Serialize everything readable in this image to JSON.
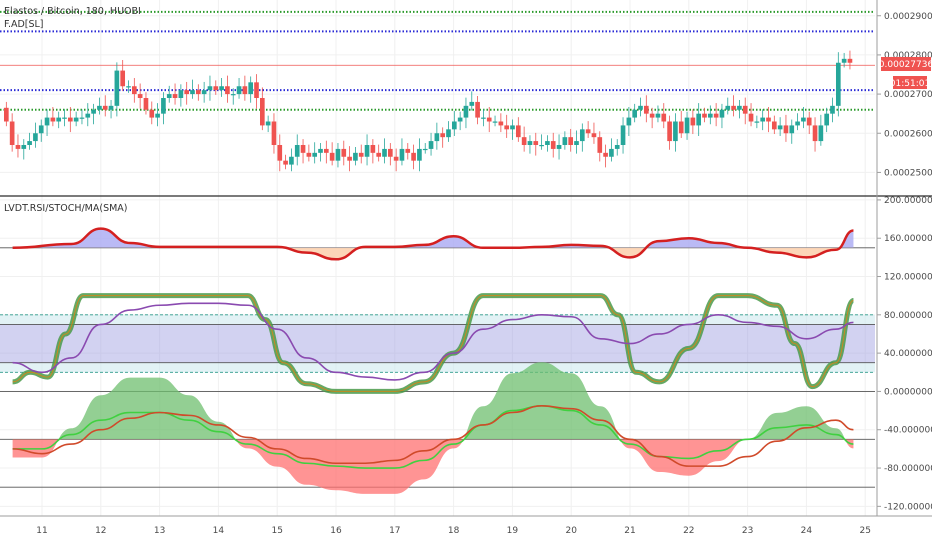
{
  "header": {
    "title": "Elastos / Bitcoin, 180, HUOBI",
    "indicator_top": "F.AD[SL]",
    "indicator_bottom": "LVDT.RSI/STOCH/MA(SMA)"
  },
  "price_tags": {
    "last_price": "0.00027736",
    "countdown": "01:51:01"
  },
  "colors": {
    "up": "#26a69a",
    "down": "#ef5350",
    "blue_level": "#2a2ad6",
    "green_level": "#2a9a2a",
    "price_line": "#ef5350",
    "axis_text": "#4a4a4a",
    "grid": "#f0f0f0"
  },
  "chart_data": [
    {
      "type": "candlestick",
      "title": "Elastos / Bitcoin, 180, HUOBI",
      "y_ticks": [
        "0.00029000",
        "0.00028000",
        "0.00027000",
        "0.00026000",
        "0.00025000"
      ],
      "ylim": [
        0.000245,
        0.000293
      ],
      "levels": {
        "green_dotted": [
          0.000291,
          0.000266
        ],
        "blue_dotted": [
          0.000286,
          0.000271
        ]
      },
      "last_price": 0.00027736,
      "candles": [
        [
          0.0002665,
          0.000263
        ],
        [
          0.000263,
          0.000257
        ],
        [
          0.000257,
          0.000256
        ],
        [
          0.000256,
          0.000257
        ],
        [
          0.000257,
          0.000258
        ],
        [
          0.000258,
          0.00026
        ],
        [
          0.00026,
          0.000262
        ],
        [
          0.000262,
          0.000264
        ],
        [
          0.000264,
          0.000263
        ],
        [
          0.000263,
          0.000264
        ],
        [
          0.000264,
          0.000264
        ],
        [
          0.000264,
          0.000263
        ],
        [
          0.000263,
          0.000264
        ],
        [
          0.000264,
          0.000264
        ],
        [
          0.000264,
          0.000265
        ],
        [
          0.000265,
          0.000266
        ],
        [
          0.000266,
          0.000267
        ],
        [
          0.000267,
          0.000266
        ],
        [
          0.000266,
          0.000267
        ],
        [
          0.000267,
          0.000276
        ],
        [
          0.000276,
          0.000272
        ],
        [
          0.000272,
          0.000272
        ],
        [
          0.000272,
          0.00027
        ],
        [
          0.00027,
          0.000269
        ],
        [
          0.000269,
          0.000266
        ],
        [
          0.000266,
          0.000264
        ],
        [
          0.000264,
          0.000265
        ],
        [
          0.000265,
          0.000269
        ],
        [
          0.000269,
          0.00027
        ],
        [
          0.00027,
          0.000269
        ],
        [
          0.000269,
          0.000271
        ],
        [
          0.000271,
          0.00027
        ],
        [
          0.00027,
          0.000271
        ],
        [
          0.000271,
          0.00027
        ],
        [
          0.00027,
          0.000271
        ],
        [
          0.000271,
          0.000272
        ],
        [
          0.000272,
          0.000271
        ],
        [
          0.000271,
          0.000272
        ],
        [
          0.000272,
          0.00027
        ],
        [
          0.00027,
          0.00027
        ],
        [
          0.00027,
          0.000272
        ],
        [
          0.000272,
          0.00027
        ],
        [
          0.00027,
          0.000273
        ],
        [
          0.000273,
          0.000269
        ],
        [
          0.000269,
          0.000262
        ],
        [
          0.000262,
          0.000263
        ],
        [
          0.000263,
          0.000257
        ],
        [
          0.000257,
          0.000253
        ],
        [
          0.000253,
          0.000252
        ],
        [
          0.000252,
          0.000254
        ],
        [
          0.000254,
          0.000257
        ],
        [
          0.000257,
          0.000255
        ],
        [
          0.000255,
          0.000254
        ],
        [
          0.000254,
          0.000255
        ],
        [
          0.000255,
          0.000256
        ],
        [
          0.000256,
          0.000255
        ],
        [
          0.000255,
          0.000253
        ],
        [
          0.000253,
          0.000256
        ],
        [
          0.000256,
          0.000254
        ],
        [
          0.000254,
          0.000253
        ],
        [
          0.000253,
          0.000255
        ],
        [
          0.000255,
          0.000254
        ],
        [
          0.000254,
          0.000257
        ],
        [
          0.000257,
          0.000255
        ],
        [
          0.000255,
          0.000254
        ],
        [
          0.000254,
          0.000256
        ],
        [
          0.000256,
          0.000254
        ],
        [
          0.000254,
          0.000253
        ],
        [
          0.000253,
          0.000256
        ],
        [
          0.000256,
          0.000255
        ],
        [
          0.000255,
          0.000253
        ],
        [
          0.000253,
          0.000256
        ],
        [
          0.000256,
          0.000256
        ],
        [
          0.000256,
          0.000258
        ],
        [
          0.000258,
          0.00026
        ],
        [
          0.00026,
          0.000259
        ],
        [
          0.000259,
          0.000261
        ],
        [
          0.000261,
          0.000263
        ],
        [
          0.000263,
          0.000264
        ],
        [
          0.000264,
          0.000267
        ],
        [
          0.000267,
          0.000268
        ],
        [
          0.000268,
          0.000264
        ],
        [
          0.000264,
          0.000264
        ],
        [
          0.000264,
          0.000263
        ],
        [
          0.000263,
          0.000263
        ],
        [
          0.000263,
          0.000262
        ],
        [
          0.000262,
          0.000261
        ],
        [
          0.000261,
          0.000262
        ],
        [
          0.000262,
          0.000259
        ],
        [
          0.000259,
          0.000257
        ],
        [
          0.000257,
          0.000258
        ],
        [
          0.000258,
          0.000257
        ],
        [
          0.000257,
          0.000257
        ],
        [
          0.000257,
          0.000258
        ],
        [
          0.000258,
          0.000256
        ],
        [
          0.000256,
          0.000257
        ],
        [
          0.000257,
          0.000259
        ],
        [
          0.000259,
          0.000257
        ],
        [
          0.000257,
          0.000258
        ],
        [
          0.000258,
          0.000261
        ],
        [
          0.000261,
          0.00026
        ],
        [
          0.00026,
          0.000259
        ],
        [
          0.000259,
          0.000255
        ],
        [
          0.000255,
          0.000254
        ],
        [
          0.000254,
          0.000256
        ],
        [
          0.000256,
          0.000257
        ],
        [
          0.000257,
          0.000262
        ],
        [
          0.000262,
          0.000264
        ],
        [
          0.000264,
          0.000266
        ],
        [
          0.000266,
          0.000267
        ],
        [
          0.000267,
          0.000265
        ],
        [
          0.000265,
          0.000264
        ],
        [
          0.000264,
          0.000265
        ],
        [
          0.000265,
          0.000263
        ],
        [
          0.000263,
          0.000258
        ],
        [
          0.000258,
          0.000263
        ],
        [
          0.000263,
          0.00026
        ],
        [
          0.00026,
          0.000264
        ],
        [
          0.000264,
          0.000262
        ],
        [
          0.000262,
          0.000265
        ],
        [
          0.000265,
          0.000264
        ],
        [
          0.000264,
          0.000265
        ],
        [
          0.000265,
          0.000264
        ],
        [
          0.000264,
          0.000266
        ],
        [
          0.000266,
          0.000267
        ],
        [
          0.000267,
          0.000266
        ],
        [
          0.000266,
          0.000267
        ],
        [
          0.000267,
          0.000265
        ],
        [
          0.000265,
          0.000263
        ],
        [
          0.000263,
          0.000263
        ],
        [
          0.000263,
          0.000264
        ],
        [
          0.000264,
          0.000263
        ],
        [
          0.000263,
          0.000261
        ],
        [
          0.000261,
          0.000262
        ],
        [
          0.000262,
          0.00026
        ],
        [
          0.00026,
          0.000262
        ],
        [
          0.000262,
          0.000263
        ],
        [
          0.000263,
          0.000264
        ],
        [
          0.000264,
          0.000262
        ],
        [
          0.000262,
          0.000258
        ],
        [
          0.000258,
          0.000262
        ],
        [
          0.000262,
          0.000265
        ],
        [
          0.000265,
          0.000267
        ],
        [
          0.000267,
          0.000278
        ],
        [
          0.000278,
          0.000279
        ],
        [
          0.000279,
          0.000278
        ]
      ]
    },
    {
      "type": "line",
      "title": "LVDT.RSI/STOCH/MA(SMA)",
      "y_ticks": [
        "200.00000000",
        "160.00000000",
        "120.00000000",
        "80.00000000",
        "40.00000000",
        "0.00000000",
        "-40.00000000",
        "-80.00000000",
        "-120.00000000"
      ],
      "ylim": [
        -128,
        202
      ],
      "x_ticks": [
        "11",
        "12",
        "13",
        "14",
        "15",
        "16",
        "17",
        "18",
        "19",
        "20",
        "21",
        "22",
        "23",
        "24",
        "25"
      ],
      "reference_lines": [
        150,
        80,
        70,
        30,
        20,
        0,
        -50,
        -100
      ],
      "series": [
        {
          "role": "rsi_line",
          "x": [
            0,
            1,
            1.5,
            2,
            2.5,
            3,
            3.5,
            4,
            4.5,
            5,
            5.5,
            6,
            6.5,
            7,
            7.5,
            8,
            8.5,
            9,
            9.5,
            10,
            10.5,
            11,
            11.5,
            12,
            12.5,
            13,
            13.5,
            14,
            14.3
          ],
          "values": [
            150,
            154,
            170,
            155,
            151,
            151,
            151,
            151,
            151,
            145,
            138,
            151,
            151,
            153,
            162,
            150,
            150,
            151,
            153,
            152,
            140,
            157,
            160,
            155,
            150,
            145,
            140,
            148,
            168
          ]
        },
        {
          "role": "stoch_line",
          "x": [
            0,
            0.3,
            0.6,
            0.9,
            1.2,
            1.5,
            2,
            2.5,
            3,
            3.5,
            4,
            4.3,
            4.6,
            5,
            5.5,
            6,
            6.5,
            7,
            7.5,
            8,
            8.5,
            9,
            9.5,
            10,
            10.3,
            10.6,
            11,
            11.5,
            12,
            12.5,
            13,
            13.3,
            13.6,
            14,
            14.3
          ],
          "values": [
            10,
            20,
            15,
            60,
            100,
            100,
            100,
            100,
            100,
            100,
            100,
            75,
            30,
            8,
            0,
            0,
            0,
            10,
            40,
            100,
            100,
            100,
            100,
            100,
            80,
            20,
            10,
            45,
            100,
            100,
            90,
            50,
            5,
            30,
            95
          ]
        },
        {
          "role": "ma_line",
          "x": [
            0,
            0.5,
            1,
            1.5,
            2,
            2.5,
            3,
            3.5,
            4,
            4.5,
            5,
            5.5,
            6,
            6.5,
            7,
            7.5,
            8,
            8.5,
            9,
            9.5,
            10,
            10.5,
            11,
            11.5,
            12,
            12.5,
            13,
            13.5,
            14,
            14.3
          ],
          "values": [
            30,
            20,
            35,
            70,
            85,
            90,
            92,
            92,
            90,
            65,
            35,
            20,
            15,
            12,
            20,
            40,
            65,
            75,
            80,
            78,
            55,
            50,
            60,
            70,
            80,
            72,
            68,
            55,
            65,
            72
          ]
        },
        {
          "role": "osc_fast",
          "x": [
            0,
            0.5,
            1,
            1.5,
            2,
            2.5,
            3,
            3.5,
            4,
            4.5,
            5,
            5.5,
            6,
            6.5,
            7,
            7.5,
            8,
            8.5,
            9,
            9.5,
            10,
            10.5,
            11,
            11.5,
            12,
            12.5,
            13,
            13.5,
            14,
            14.3
          ],
          "values": [
            -60,
            -60,
            -45,
            -30,
            -22,
            -22,
            -30,
            -42,
            -55,
            -65,
            -75,
            -78,
            -80,
            -80,
            -72,
            -55,
            -35,
            -20,
            -15,
            -20,
            -35,
            -55,
            -68,
            -70,
            -62,
            -50,
            -38,
            -35,
            -45,
            -55
          ]
        },
        {
          "role": "osc_slow",
          "x": [
            0,
            0.5,
            1,
            1.5,
            2,
            2.5,
            3,
            3.5,
            4,
            4.5,
            5,
            5.5,
            6,
            6.5,
            7,
            7.5,
            8,
            8.5,
            9,
            9.5,
            10,
            10.5,
            11,
            11.5,
            12,
            12.5,
            13,
            13.5,
            14,
            14.3
          ],
          "values": [
            -60,
            -65,
            -55,
            -40,
            -28,
            -22,
            -25,
            -35,
            -48,
            -60,
            -70,
            -75,
            -75,
            -72,
            -62,
            -50,
            -35,
            -22,
            -15,
            -18,
            -30,
            -50,
            -68,
            -78,
            -78,
            -68,
            -52,
            -38,
            -30,
            -40
          ]
        }
      ]
    }
  ]
}
